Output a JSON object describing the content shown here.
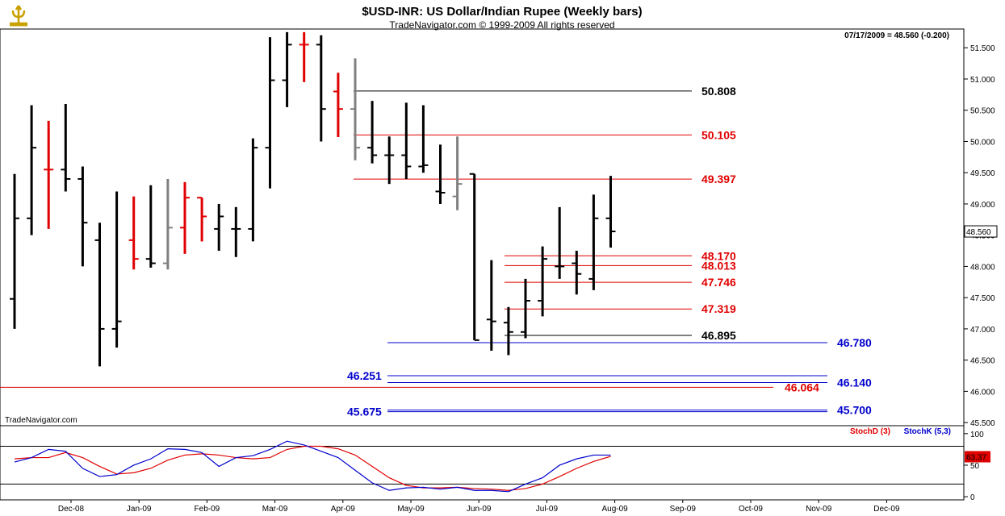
{
  "header": {
    "title": "$USD-INR:  US Dollar/Indian Rupee  (Weekly bars)",
    "subtitle": "TradeNavigator.com © 1999-2009 All rights reserved",
    "last_bar_info": "07/17/2009 = 48.560 (-0.200)",
    "watermark": "TradeNavigator.com",
    "logo_icon": "trident-logo-icon"
  },
  "colors": {
    "up_bar": "#000000",
    "down_bar": "#e00000",
    "neutral_bar": "#808080",
    "stoch_d": "#e00000",
    "stoch_k": "#0000cc",
    "blue_level": "#0000cc",
    "red_level": "#e00000",
    "black_level": "#000000"
  },
  "chart_data": [
    {
      "type": "ohlc",
      "title": "$USD-INR:  US Dollar/Indian Rupee  (Weekly bars)",
      "ylim": [
        45.45,
        51.8
      ],
      "y_ticks": [
        "45.500",
        "46.000",
        "46.500",
        "47.000",
        "47.500",
        "48.000",
        "48.500",
        "49.000",
        "49.500",
        "50.000",
        "50.500",
        "51.000",
        "51.500"
      ],
      "x_ticks": [
        "Dec-08",
        "Jan-09",
        "Feb-09",
        "Mar-09",
        "Apr-09",
        "May-09",
        "Jun-09",
        "Jul-09",
        "Aug-09",
        "Sep-09",
        "Oct-09",
        "Nov-09",
        "Dec-09"
      ],
      "last_price_label": "48.560",
      "bars": [
        {
          "o": 47.48,
          "h": 49.48,
          "l": 47.0,
          "c": 48.77,
          "color": "up"
        },
        {
          "o": 48.77,
          "h": 50.58,
          "l": 48.5,
          "c": 49.9,
          "color": "up"
        },
        {
          "o": 49.55,
          "h": 50.33,
          "l": 48.6,
          "c": 49.55,
          "color": "down"
        },
        {
          "o": 49.55,
          "h": 50.6,
          "l": 49.2,
          "c": 49.4,
          "color": "up"
        },
        {
          "o": 49.4,
          "h": 49.6,
          "l": 48.0,
          "c": 48.7,
          "color": "up"
        },
        {
          "o": 48.42,
          "h": 48.7,
          "l": 46.4,
          "c": 47.0,
          "color": "up"
        },
        {
          "o": 47.0,
          "h": 49.2,
          "l": 46.7,
          "c": 47.12,
          "color": "up"
        },
        {
          "o": 48.42,
          "h": 49.12,
          "l": 47.95,
          "c": 48.12,
          "color": "down"
        },
        {
          "o": 48.12,
          "h": 49.3,
          "l": 47.98,
          "c": 48.05,
          "color": "up"
        },
        {
          "o": 48.05,
          "h": 49.4,
          "l": 47.95,
          "c": 48.62,
          "color": "neutral"
        },
        {
          "o": 48.62,
          "h": 49.35,
          "l": 48.2,
          "c": 49.1,
          "color": "down"
        },
        {
          "o": 49.1,
          "h": 49.1,
          "l": 48.4,
          "c": 48.8,
          "color": "down"
        },
        {
          "o": 48.6,
          "h": 49.0,
          "l": 48.25,
          "c": 48.8,
          "color": "up"
        },
        {
          "o": 48.6,
          "h": 48.95,
          "l": 48.15,
          "c": 48.6,
          "color": "up"
        },
        {
          "o": 48.6,
          "h": 50.05,
          "l": 48.4,
          "c": 49.9,
          "color": "up"
        },
        {
          "o": 49.9,
          "h": 51.67,
          "l": 49.25,
          "c": 50.98,
          "color": "up"
        },
        {
          "o": 50.98,
          "h": 51.75,
          "l": 50.55,
          "c": 51.55,
          "color": "up"
        },
        {
          "o": 51.55,
          "h": 51.75,
          "l": 50.95,
          "c": 51.55,
          "color": "down"
        },
        {
          "o": 51.55,
          "h": 51.7,
          "l": 50.0,
          "c": 50.52,
          "color": "up"
        },
        {
          "o": 50.8,
          "h": 51.1,
          "l": 50.07,
          "c": 50.52,
          "color": "down"
        },
        {
          "o": 50.52,
          "h": 51.33,
          "l": 49.7,
          "c": 49.9,
          "color": "neutral"
        },
        {
          "o": 49.9,
          "h": 50.65,
          "l": 49.65,
          "c": 49.78,
          "color": "up"
        },
        {
          "o": 49.78,
          "h": 50.08,
          "l": 49.32,
          "c": 49.78,
          "color": "up"
        },
        {
          "o": 49.78,
          "h": 50.62,
          "l": 49.4,
          "c": 49.6,
          "color": "up"
        },
        {
          "o": 49.6,
          "h": 50.58,
          "l": 49.5,
          "c": 49.62,
          "color": "up"
        },
        {
          "o": 49.2,
          "h": 49.95,
          "l": 49.0,
          "c": 49.18,
          "color": "up"
        },
        {
          "o": 49.12,
          "h": 50.08,
          "l": 48.9,
          "c": 49.32,
          "color": "neutral"
        },
        {
          "o": 49.48,
          "h": 49.48,
          "l": 46.82,
          "c": 46.82,
          "color": "up"
        },
        {
          "o": 47.15,
          "h": 48.1,
          "l": 46.65,
          "c": 47.12,
          "color": "up"
        },
        {
          "o": 47.1,
          "h": 47.35,
          "l": 46.58,
          "c": 46.95,
          "color": "up"
        },
        {
          "o": 46.95,
          "h": 47.8,
          "l": 46.85,
          "c": 47.45,
          "color": "up"
        },
        {
          "o": 47.45,
          "h": 48.32,
          "l": 47.2,
          "c": 48.12,
          "color": "up"
        },
        {
          "o": 48.0,
          "h": 48.95,
          "l": 47.8,
          "c": 48.0,
          "color": "up"
        },
        {
          "o": 48.05,
          "h": 48.25,
          "l": 47.55,
          "c": 47.88,
          "color": "up"
        },
        {
          "o": 47.8,
          "h": 49.15,
          "l": 47.62,
          "c": 48.77,
          "color": "up"
        },
        {
          "o": 48.77,
          "h": 49.45,
          "l": 48.3,
          "c": 48.56,
          "color": "up"
        }
      ],
      "levels": [
        {
          "value": 50.808,
          "label": "50.808",
          "color": "black",
          "x_start": "Mar-4",
          "x_end": "Sep-1",
          "label_side": "right"
        },
        {
          "value": 50.105,
          "label": "50.105",
          "color": "red",
          "x_start": "Mar-4",
          "x_end": "Sep-1",
          "label_side": "right"
        },
        {
          "value": 49.397,
          "label": "49.397",
          "color": "red",
          "x_start": "Mar-4",
          "x_end": "Sep-1",
          "label_side": "right"
        },
        {
          "value": 48.17,
          "label": "48.170",
          "color": "red",
          "x_start": "Jun-1",
          "x_end": "Sep-1",
          "label_side": "right"
        },
        {
          "value": 48.013,
          "label": "48.013",
          "color": "red",
          "x_start": "Jun-1",
          "x_end": "Sep-1",
          "label_side": "right"
        },
        {
          "value": 47.746,
          "label": "47.746",
          "color": "red",
          "x_start": "Jun-1",
          "x_end": "Sep-1",
          "label_side": "right"
        },
        {
          "value": 47.319,
          "label": "47.319",
          "color": "red",
          "x_start": "Jun-1",
          "x_end": "Sep-1",
          "label_side": "right"
        },
        {
          "value": 46.895,
          "label": "46.895",
          "color": "black",
          "x_start": "Jun-1",
          "x_end": "Sep-1",
          "label_side": "right"
        },
        {
          "value": 46.78,
          "label": "46.780",
          "color": "blue",
          "x_start": "Apr-3",
          "x_end": "Oct-4",
          "label_side": "right"
        },
        {
          "value": 46.251,
          "label": "46.251",
          "color": "blue",
          "x_start": "Apr-3",
          "x_end": "Oct-4",
          "label_side": "left"
        },
        {
          "value": 46.14,
          "label": "46.140",
          "color": "blue",
          "x_start": "Apr-3",
          "x_end": "Oct-4",
          "label_side": "right"
        },
        {
          "value": 46.064,
          "label": "46.064",
          "color": "red",
          "x_start": "Nov-4",
          "x_end": "Sep-4",
          "label_side": "right"
        },
        {
          "value": 45.7,
          "label": "45.700",
          "color": "blue",
          "x_start": "Apr-3",
          "x_end": "Oct-4",
          "label_side": "right"
        },
        {
          "value": 45.675,
          "label": "45.675",
          "color": "blue",
          "x_start": "Apr-3",
          "x_end": "Oct-4",
          "label_side": "left"
        }
      ]
    },
    {
      "type": "line",
      "ylim": [
        -5,
        110
      ],
      "y_ticks": [
        "0",
        "50",
        "100"
      ],
      "reference_lines": [
        20,
        80
      ],
      "legend": [
        "StochD (3)",
        "StochK (5,3)"
      ],
      "last_value_label": "63.37",
      "series": [
        {
          "name": "StochD (3)",
          "values": [
            60,
            62,
            62,
            70,
            62,
            48,
            36,
            38,
            45,
            58,
            66,
            68,
            66,
            62,
            60,
            62,
            75,
            80,
            80,
            76,
            66,
            48,
            30,
            18,
            14,
            14,
            15,
            13,
            12,
            10,
            13,
            20,
            32,
            45,
            56,
            64
          ]
        },
        {
          "name": "StochK (5,3)",
          "values": [
            55,
            62,
            75,
            72,
            45,
            32,
            35,
            50,
            60,
            76,
            75,
            70,
            48,
            62,
            65,
            75,
            88,
            82,
            72,
            62,
            42,
            22,
            10,
            14,
            15,
            12,
            15,
            10,
            10,
            8,
            20,
            30,
            50,
            60,
            66,
            66
          ]
        }
      ]
    }
  ]
}
